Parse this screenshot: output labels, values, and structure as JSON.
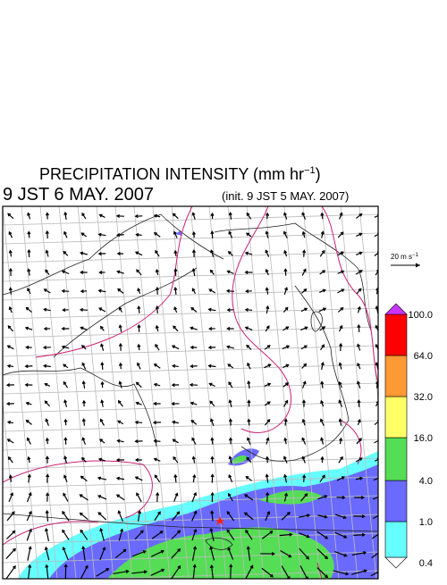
{
  "header": {
    "title_main": "PRECIPITATION INTENSITY (mm hr",
    "title_sup": "−1",
    "title_end": ")",
    "valid_time": "9 JST 6 MAY. 2007",
    "init_time": "(init. 9 JST 5 MAY. 2007)"
  },
  "wind_scale": {
    "label_main": "20 m s",
    "label_sup": "−1"
  },
  "colorbar": {
    "levels": [
      {
        "value": 0.4,
        "label": "0.4"
      },
      {
        "value": 1,
        "label": "1.0"
      },
      {
        "value": 4,
        "label": "4.0"
      },
      {
        "value": 16,
        "label": "16.0"
      },
      {
        "value": 32,
        "label": "32.0"
      },
      {
        "value": 64,
        "label": "64.0"
      },
      {
        "value": 100,
        "label": "100.0"
      }
    ],
    "colors": [
      "#ffffff",
      "#66ffff",
      "#6a6aff",
      "#55dd55",
      "#ffff66",
      "#ff9933",
      "#ff0000",
      "#cc33ff"
    ]
  }
}
